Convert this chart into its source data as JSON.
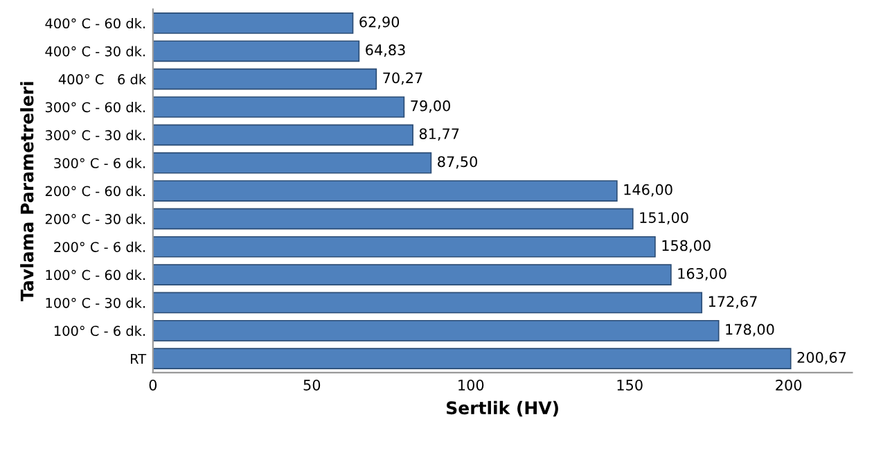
{
  "chart_data": {
    "type": "bar",
    "orientation": "horizontal",
    "xlabel": "Sertlik (HV)",
    "ylabel": "Tavlama Parametreleri",
    "categories": [
      "400° C - 60 dk.",
      "400° C - 30 dk.",
      "400° C   6 dk",
      "300° C - 60 dk.",
      "300° C - 30 dk.",
      "300° C - 6 dk.",
      "200° C - 60 dk.",
      "200° C - 30 dk.",
      "200° C - 6 dk.",
      "100° C - 60 dk.",
      "100° C - 30 dk.",
      "100° C - 6 dk.",
      "RT"
    ],
    "values": [
      62.9,
      64.83,
      70.27,
      79.0,
      81.77,
      87.5,
      146.0,
      151.0,
      158.0,
      163.0,
      172.67,
      178.0,
      200.67
    ],
    "value_labels": [
      "62,90",
      "64,83",
      "70,27",
      "79,00",
      "81,77",
      "87,50",
      "146,00",
      "151,00",
      "158,00",
      "163,00",
      "172,67",
      "178,00",
      "200,67"
    ],
    "color": "#4f81bd",
    "xlim": [
      0,
      220
    ],
    "xticks": [
      0,
      50,
      100,
      150,
      200
    ],
    "grid": false,
    "legend": false
  }
}
